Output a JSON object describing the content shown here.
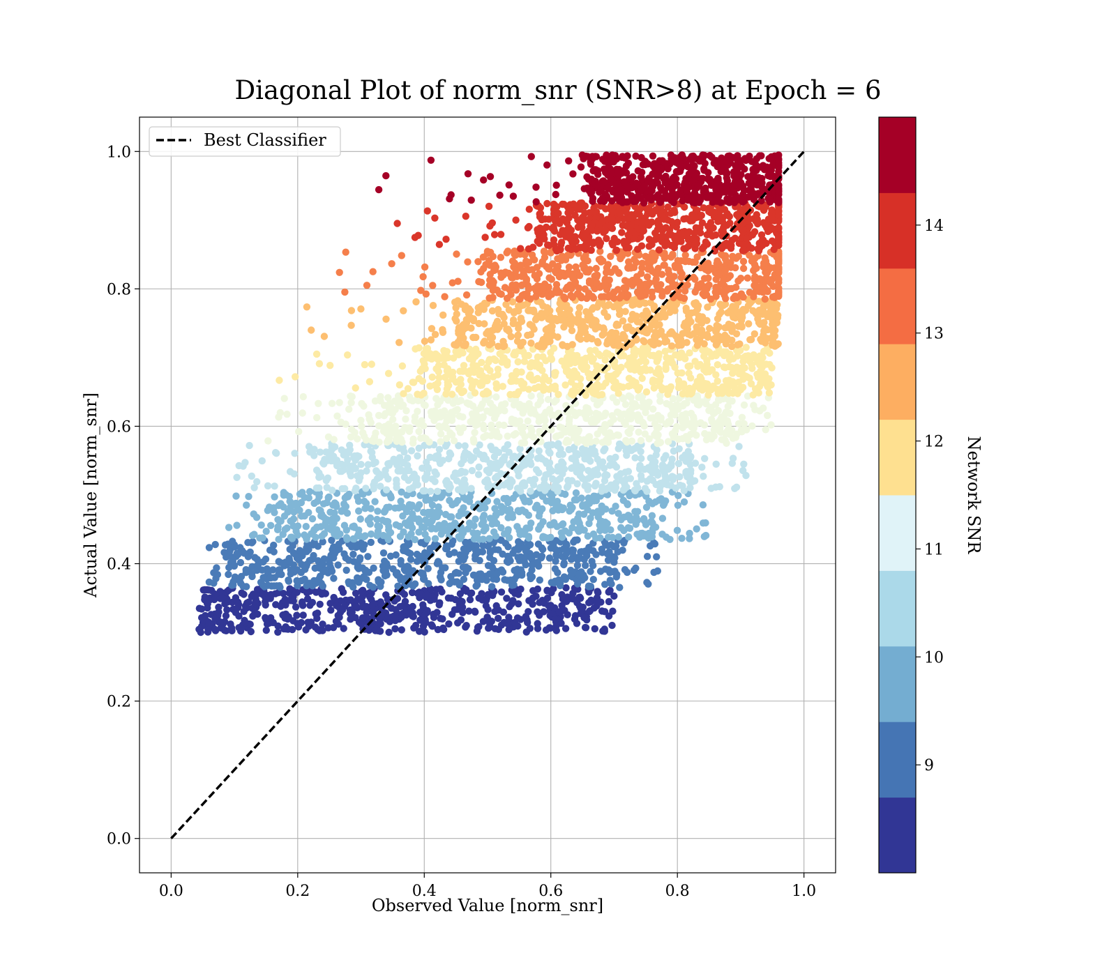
{
  "chart_data": {
    "type": "scatter",
    "title": "Diagonal Plot of norm_snr (SNR>8) at Epoch = 6",
    "xlabel": "Observed Value [norm_snr]",
    "ylabel": "Actual Value [norm_snr]",
    "xlim": [
      -0.05,
      1.05
    ],
    "ylim": [
      -0.05,
      1.05
    ],
    "x_ticks": [
      "0.0",
      "0.2",
      "0.4",
      "0.6",
      "0.8",
      "1.0"
    ],
    "y_ticks": [
      "0.0",
      "0.2",
      "0.4",
      "0.6",
      "0.8",
      "1.0"
    ],
    "grid": true,
    "legend": {
      "placement": "upper-left",
      "entries": [
        "Best Classifier"
      ]
    },
    "reference_line": {
      "name": "Best Classifier",
      "x": [
        0,
        1
      ],
      "y": [
        0,
        1
      ],
      "style": "dashed",
      "color": "#000000"
    },
    "colorbar": {
      "label": "Network SNR",
      "range": [
        8,
        15
      ],
      "ticks": [
        "9",
        "10",
        "11",
        "12",
        "13",
        "14"
      ],
      "band_colors": [
        "#313695",
        "#4575b4",
        "#74add1",
        "#abd9e9",
        "#e0f3f8",
        "#fee090",
        "#fdae61",
        "#f46d43",
        "#d73027",
        "#a50026"
      ]
    },
    "series": [
      {
        "snr_band": [
          8.0,
          8.7
        ],
        "color": "#313695",
        "y_range": [
          0.3,
          0.365
        ],
        "x_core": [
          0.06,
          0.66
        ],
        "x_extent": [
          0.04,
          0.7
        ]
      },
      {
        "snr_band": [
          8.7,
          9.4
        ],
        "color": "#4a7bb7",
        "y_range": [
          0.365,
          0.435
        ],
        "x_core": [
          0.1,
          0.7
        ],
        "x_extent": [
          0.06,
          0.78
        ]
      },
      {
        "snr_band": [
          9.4,
          10.1
        ],
        "color": "#80b6d6",
        "y_range": [
          0.435,
          0.505
        ],
        "x_core": [
          0.17,
          0.76
        ],
        "x_extent": [
          0.08,
          0.85
        ]
      },
      {
        "snr_band": [
          10.1,
          10.8
        ],
        "color": "#c1e2ec",
        "y_range": [
          0.505,
          0.575
        ],
        "x_core": [
          0.24,
          0.82
        ],
        "x_extent": [
          0.1,
          0.91
        ]
      },
      {
        "snr_band": [
          10.8,
          11.5
        ],
        "color": "#eff7e0",
        "y_range": [
          0.575,
          0.645
        ],
        "x_core": [
          0.3,
          0.88
        ],
        "x_extent": [
          0.15,
          0.95
        ]
      },
      {
        "snr_band": [
          11.5,
          12.2
        ],
        "color": "#fdeaa4",
        "y_range": [
          0.645,
          0.715
        ],
        "x_core": [
          0.4,
          0.93
        ],
        "x_extent": [
          0.17,
          0.95
        ]
      },
      {
        "snr_band": [
          12.2,
          12.9
        ],
        "color": "#fdbf71",
        "y_range": [
          0.715,
          0.785
        ],
        "x_core": [
          0.45,
          0.95
        ],
        "x_extent": [
          0.2,
          0.96
        ]
      },
      {
        "snr_band": [
          12.9,
          13.6
        ],
        "color": "#f57f4b",
        "y_range": [
          0.785,
          0.855
        ],
        "x_core": [
          0.5,
          0.96
        ],
        "x_extent": [
          0.26,
          0.96
        ]
      },
      {
        "snr_band": [
          13.6,
          14.3
        ],
        "color": "#da362a",
        "y_range": [
          0.855,
          0.925
        ],
        "x_core": [
          0.58,
          0.96
        ],
        "x_extent": [
          0.35,
          0.96
        ]
      },
      {
        "snr_band": [
          14.3,
          15.0
        ],
        "color": "#a50026",
        "y_range": [
          0.925,
          0.995
        ],
        "x_core": [
          0.66,
          0.96
        ],
        "x_extent": [
          0.3,
          0.96
        ]
      }
    ]
  }
}
